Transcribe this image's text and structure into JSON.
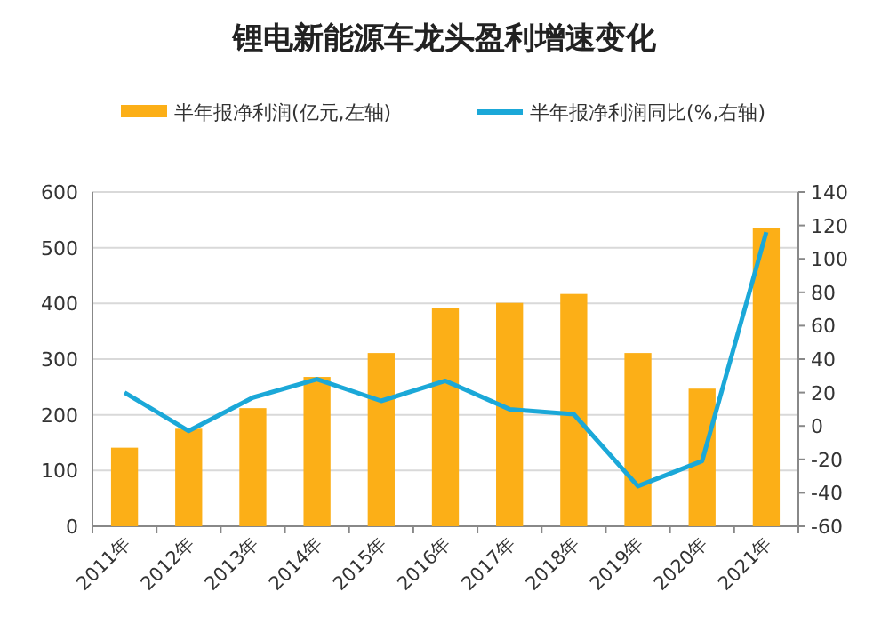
{
  "chart_data": {
    "type": "bar",
    "title": "锂电新能源车龙头盈利增速变化",
    "categories": [
      "2011年",
      "2012年",
      "2013年",
      "2014年",
      "2015年",
      "2016年",
      "2017年",
      "2018年",
      "2019年",
      "2020年",
      "2021年"
    ],
    "series": [
      {
        "name": "半年报净利润(亿元,左轴)",
        "color": "#fcaf17",
        "values": [
          141,
          175,
          212,
          268,
          311,
          392,
          401,
          417,
          311,
          247,
          536
        ]
      },
      {
        "name": "半年报净利润同比(%,右轴)",
        "type": "line",
        "axis": "y2",
        "color": "#1ba8d8",
        "values": [
          20,
          -3,
          17,
          28,
          15,
          27,
          10,
          7,
          -36,
          -21,
          116
        ]
      }
    ],
    "ylim": [
      0,
      600
    ],
    "yticks": [
      0,
      100,
      200,
      300,
      400,
      500,
      600
    ],
    "y2lim": [
      -60,
      140
    ],
    "y2ticks": [
      -60,
      -40,
      -20,
      0,
      20,
      40,
      60,
      80,
      100,
      120,
      140
    ],
    "grid": "y",
    "legend": "top",
    "marker": "none"
  }
}
